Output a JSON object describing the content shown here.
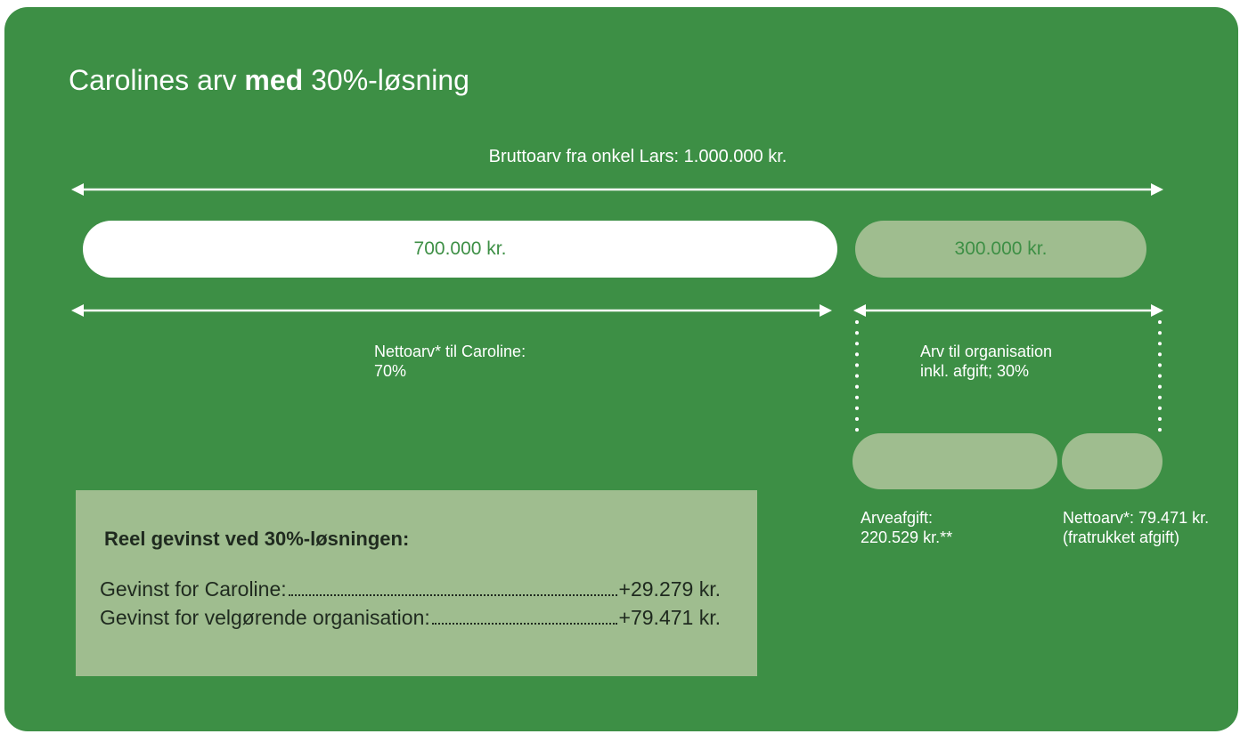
{
  "title": {
    "before": "Carolines arv ",
    "bold": "med",
    "after": " 30%-løsning"
  },
  "gross_label": "Bruttoarv fra onkel Lars: 1.000.000 kr.",
  "pills": {
    "caroline": "700.000 kr.",
    "organisation": "300.000 kr."
  },
  "caroline_label": [
    "Nettoarv* til Caroline:",
    "70%"
  ],
  "organisation_label": [
    "Arv til organisation",
    "inkl. afgift; 30%"
  ],
  "tax_label": [
    "Arveafgift:",
    "220.529 kr.**"
  ],
  "net_label": [
    "Nettoarv*: 79.471 kr.",
    "(fratrukket afgift)"
  ],
  "summary": {
    "title": "Reel gevinst ved 30%-løsningen:",
    "rows": [
      [
        "Gevinst for Caroline:",
        "+29.279 kr."
      ],
      [
        "Gevinst for velgørende organisation:",
        "+79.471 kr."
      ]
    ]
  }
}
